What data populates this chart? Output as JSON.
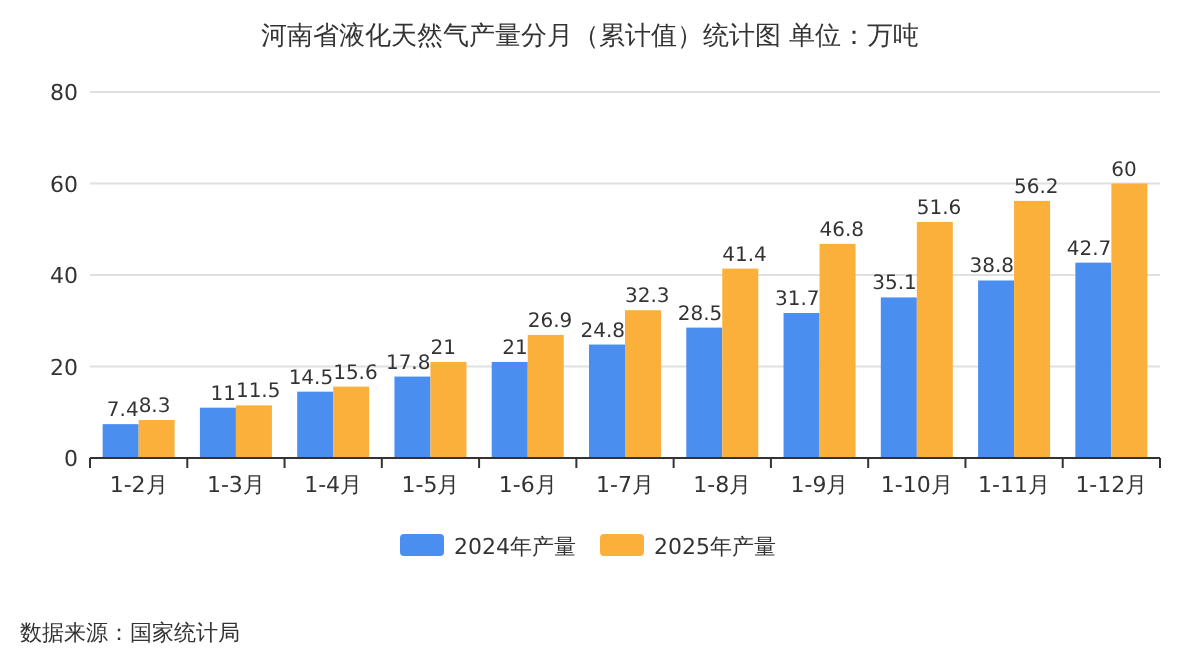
{
  "chart_data": {
    "type": "bar",
    "title": "河南省液化天然气产量分月（累计值）统计图 单位：万吨",
    "categories": [
      "1-2月",
      "1-3月",
      "1-4月",
      "1-5月",
      "1-6月",
      "1-7月",
      "1-8月",
      "1-9月",
      "1-10月",
      "1-11月",
      "1-12月"
    ],
    "series": [
      {
        "name": "2024年产量",
        "color": "#4a8ef0",
        "values": [
          7.4,
          11,
          14.5,
          17.8,
          21,
          24.8,
          28.5,
          31.7,
          35.1,
          38.8,
          42.7
        ]
      },
      {
        "name": "2025年产量",
        "color": "#fbb03b",
        "values": [
          8.3,
          11.5,
          15.6,
          21,
          26.9,
          32.3,
          41.4,
          46.8,
          51.6,
          56.2,
          60
        ]
      }
    ],
    "ylim": [
      0,
      80
    ],
    "yticks": [
      0,
      20,
      40,
      60,
      80
    ],
    "grid": "y",
    "legend": "bottom",
    "data_labels": true,
    "annotations": [
      "数据来源：国家统计局"
    ]
  }
}
